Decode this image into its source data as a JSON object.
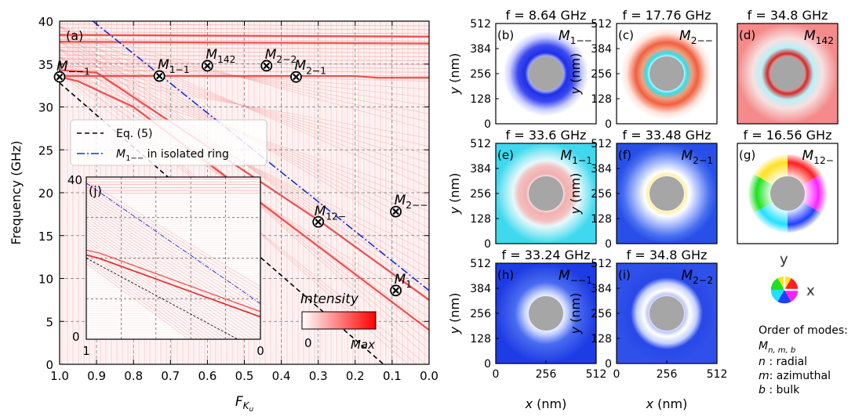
{
  "chart_data": {
    "type": "line",
    "main_panel": {
      "panel_label": "(a)",
      "xlabel": "F",
      "xlabel_sub": "K",
      "xlabel_subsub": "u",
      "ylabel": "Frequency (GHz)",
      "xlim": [
        1.0,
        0.0
      ],
      "ylim": [
        0,
        40
      ],
      "xticks": [
        "1.0",
        "0.9",
        "0.8",
        "0.7",
        "0.6",
        "0.5",
        "0.4",
        "0.3",
        "0.2",
        "0.1",
        "0.0"
      ],
      "yticks": [
        "0",
        "5",
        "10",
        "15",
        "20",
        "25",
        "30",
        "35",
        "40"
      ],
      "grid": true,
      "series": [
        {
          "name": "Eq. (5)",
          "style": "dashed",
          "color": "#000000",
          "x": [
            1.0,
            0.0
          ],
          "y": [
            32.8,
            -4.6
          ]
        },
        {
          "name_prefix": "M",
          "name_sub": "1−−",
          "name_suffix": " in isolated ring",
          "style": "dashdot",
          "color": "#1030e0",
          "x": [
            0.91,
            0.0
          ],
          "y": [
            40.0,
            8.6
          ]
        }
      ],
      "spectral_lines": [
        {
          "color": "#ee3333",
          "x": [
            1.0,
            0.95,
            0.8,
            0.0
          ],
          "y": [
            33.5,
            33.0,
            30.0,
            4.0
          ]
        },
        {
          "color": "#ee3333",
          "x": [
            1.0,
            0.9,
            0.3,
            0.0
          ],
          "y": [
            34.3,
            34.0,
            16.8,
            7.5
          ]
        },
        {
          "color": "#ee3333",
          "x": [
            1.0,
            0.2,
            0.14,
            0.0
          ],
          "y": [
            33.6,
            33.6,
            33.4,
            33.4
          ]
        },
        {
          "color": "#ee3333",
          "x": [
            1.0,
            0.0
          ],
          "y": [
            37.6,
            37.4
          ]
        },
        {
          "color": "#ee3333",
          "x": [
            1.0,
            0.0
          ],
          "y": [
            38.4,
            38.2
          ]
        }
      ],
      "annotations": [
        {
          "main": "M",
          "sub": "−−1",
          "x": 1.0,
          "y": 33.5
        },
        {
          "main": "M",
          "sub": "1−1",
          "x": 0.73,
          "y": 33.6
        },
        {
          "main": "M",
          "sub": "142",
          "x": 0.6,
          "y": 34.8
        },
        {
          "main": "M",
          "sub": "2−2",
          "x": 0.44,
          "y": 34.8
        },
        {
          "main": "M",
          "sub": "2−1",
          "x": 0.36,
          "y": 33.5
        },
        {
          "main": "M",
          "sub": "12−",
          "x": 0.3,
          "y": 16.6
        },
        {
          "main": "M",
          "sub": "2−−",
          "x": 0.09,
          "y": 17.8
        },
        {
          "main": "M",
          "sub": "1",
          "x": 0.09,
          "y": 8.6
        }
      ],
      "colorbar": {
        "title": "Intensity",
        "min_label": "0",
        "max_label": "Max",
        "colors": [
          "#ffffff",
          "#ff0000"
        ]
      }
    },
    "inset": {
      "panel_label": "(j)",
      "ytop_label": "40",
      "ybottom_label": "0",
      "xleft_label": "1",
      "xright_label": "0",
      "xlim": [
        1,
        0
      ],
      "ylim": [
        0,
        40
      ]
    },
    "mode_panels": [
      {
        "id": "(b)",
        "freq": "f = 8.64 GHz",
        "mode": "M",
        "mode_sub": "1−−"
      },
      {
        "id": "(c)",
        "freq": "f = 17.76 GHz",
        "mode": "M",
        "mode_sub": "2−−"
      },
      {
        "id": "(d)",
        "freq": "f = 34.8 GHz",
        "mode": "M",
        "mode_sub": "142"
      },
      {
        "id": "(e)",
        "freq": "f = 33.6 GHz",
        "mode": "M",
        "mode_sub": "1−1"
      },
      {
        "id": "(f)",
        "freq": "f = 33.48 GHz",
        "mode": "M",
        "mode_sub": "2−1"
      },
      {
        "id": "(g)",
        "freq": "f = 16.56 GHz",
        "mode": "M",
        "mode_sub": "12−"
      },
      {
        "id": "(h)",
        "freq": "f = 33.24 GHz",
        "mode": "M",
        "mode_sub": "−−1"
      },
      {
        "id": "(i)",
        "freq": "f = 34.8 GHz",
        "mode": "M",
        "mode_sub": "2−2"
      }
    ],
    "mode_axes": {
      "ylabel": "y (nm)",
      "xlabel": "x (nm)",
      "ticks": [
        "0",
        "128",
        "256",
        "384",
        "512"
      ],
      "xticks": [
        "0",
        "256",
        "512"
      ]
    },
    "color_wheel": {
      "x_label": "x",
      "y_label": "y"
    },
    "order_of_modes": {
      "title": "Order of modes:",
      "notation_main": "M",
      "notation_sub": "n, m, b",
      "items": [
        {
          "symbol": "n",
          "desc": " : radial"
        },
        {
          "symbol": "m",
          "desc": ": azimuthal"
        },
        {
          "symbol": "b",
          "desc": " : bulk"
        }
      ]
    }
  }
}
